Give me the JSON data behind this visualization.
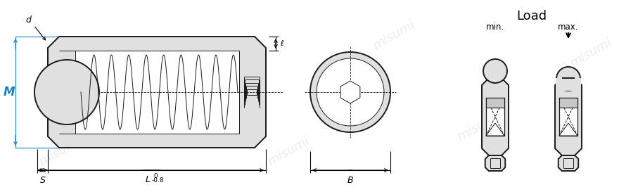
{
  "bg_color": "#ffffff",
  "line_color": "#1a1a1a",
  "body_fill": "#e0e0e0",
  "body_fill2": "#d0d0d0",
  "dim_color": "#000000",
  "M_color": "#1a7fc4",
  "watermark_color": "#b0b0b0",
  "watermark_text": "misumi",
  "title_load": "Load",
  "label_min": "min.",
  "label_max": "max.",
  "label_d": "d",
  "label_M": "M",
  "label_S": "S",
  "label_L": "L",
  "label_l": "ℓ",
  "label_B": "B",
  "fig_w": 8.8,
  "fig_h": 2.73,
  "dpi": 100
}
